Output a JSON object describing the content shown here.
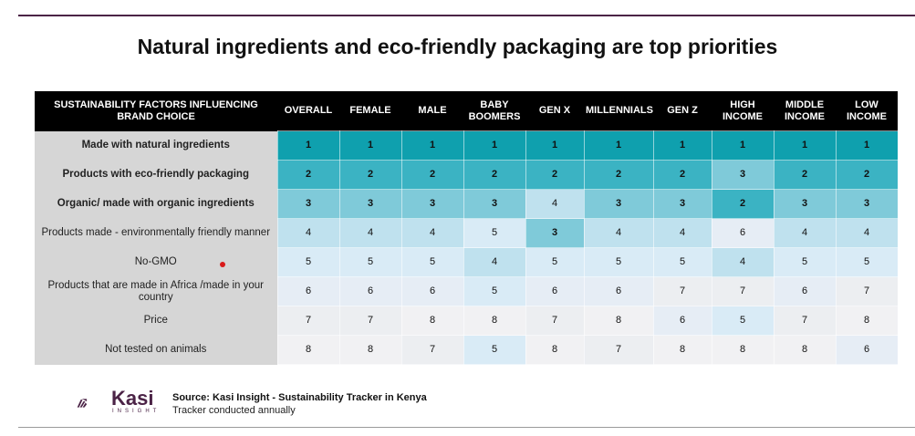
{
  "title": "Natural ingredients and eco-friendly packaging are top priorities",
  "chart_data": {
    "type": "table",
    "title": "Natural ingredients and eco-friendly packaging are top priorities",
    "corner_header": "SUSTAINABILITY FACTORS INFLUENCING BRAND CHOICE",
    "columns": [
      "OVERALL",
      "FEMALE",
      "MALE",
      "BABY BOOMERS",
      "GEN X",
      "MILLENNIALS",
      "GEN Z",
      "HIGH INCOME",
      "MIDDLE INCOME",
      "LOW INCOME"
    ],
    "rows": [
      {
        "label": "Made with natural ingredients",
        "bold": true,
        "values": [
          1,
          1,
          1,
          1,
          1,
          1,
          1,
          1,
          1,
          1
        ]
      },
      {
        "label": "Products with eco-friendly packaging",
        "bold": true,
        "values": [
          2,
          2,
          2,
          2,
          2,
          2,
          2,
          3,
          2,
          2
        ]
      },
      {
        "label": "Organic/ made with organic ingredients",
        "bold": true,
        "values": [
          3,
          3,
          3,
          3,
          4,
          3,
          3,
          2,
          3,
          3
        ]
      },
      {
        "label": "Products made - environmentally friendly manner",
        "bold": false,
        "values": [
          4,
          4,
          4,
          5,
          3,
          4,
          4,
          6,
          4,
          4
        ]
      },
      {
        "label": "No-GMO",
        "bold": false,
        "values": [
          5,
          5,
          5,
          4,
          5,
          5,
          5,
          4,
          5,
          5
        ]
      },
      {
        "label": "Products that are made in Africa /made in your country",
        "bold": false,
        "values": [
          6,
          6,
          6,
          5,
          6,
          6,
          7,
          7,
          6,
          7
        ]
      },
      {
        "label": "Price",
        "bold": false,
        "values": [
          7,
          7,
          8,
          8,
          7,
          8,
          6,
          5,
          7,
          8
        ]
      },
      {
        "label": "Not tested on animals",
        "bold": false,
        "values": [
          8,
          8,
          7,
          5,
          8,
          7,
          8,
          8,
          8,
          6
        ]
      }
    ],
    "rank_colors": {
      "1": "#0fa0ae",
      "2": "#3bb3c3",
      "3": "#7fcad9",
      "4": "#bfe1ee",
      "5": "#d9ebf6",
      "6": "#e6edf5",
      "7": "#eceef1",
      "8": "#f1f1f3"
    }
  },
  "footer": {
    "logo_word": "Kasi",
    "logo_sub": "INSIGHT",
    "source": "Source: Kasi Insight - Sustainability Tracker in Kenya",
    "note": "Tracker conducted annually"
  },
  "brand_color": "#4b2346"
}
